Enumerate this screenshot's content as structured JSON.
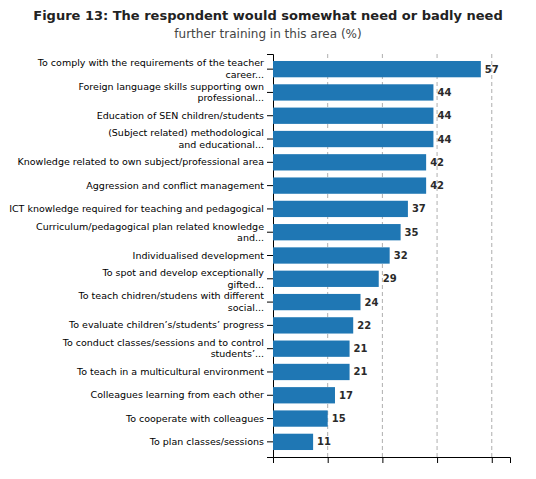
{
  "chart_data": {
    "type": "bar",
    "orientation": "horizontal",
    "title": "Figure 13: The respondent would somewhat need or badly need",
    "subtitle": "further training in this area (%)",
    "categories": [
      "To comply with the requirements of the teacher\ncareer...",
      "Foreign language skills supporting own\nprofessional...",
      "Education of SEN children/students",
      "(Subject related) methodological\nand educational...",
      "Knowledge related to own subject/professional area",
      "Aggression and conflict management",
      "ICT knowledge required for teaching and pedagogical",
      "Curriculum/pedagogical plan related knowledge\nand...",
      "Individualised development",
      "To spot and develop exceptionally\ngifted...",
      "To teach chidren/studens with different\nsocial...",
      "To evaluate children’s/students’ progress",
      "To conduct classes/sessions and to control\nstudents’...",
      "To teach in a multicultural environment",
      "Colleagues learning from each other",
      "To cooperate with colleagues",
      "To plan classes/sessions"
    ],
    "values": [
      57,
      44,
      44,
      44,
      42,
      42,
      37,
      35,
      32,
      29,
      24,
      22,
      21,
      21,
      17,
      15,
      11
    ],
    "xlim": [
      0,
      65
    ],
    "xticks": [
      15,
      30,
      45,
      60
    ],
    "grid": true,
    "tick_labels": "y",
    "data_labels": true
  }
}
